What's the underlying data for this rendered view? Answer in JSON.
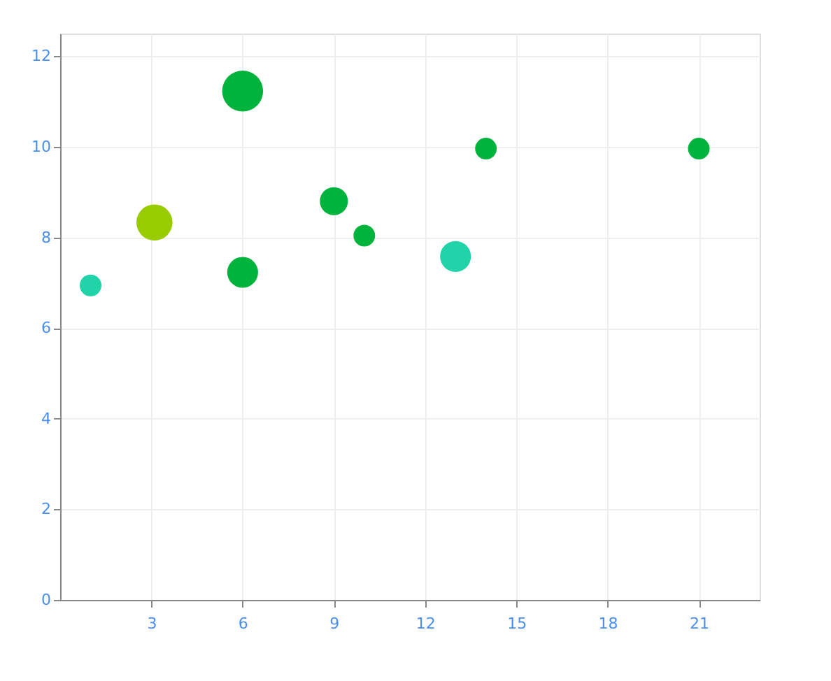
{
  "chart_data": {
    "type": "bubble",
    "x": [
      1,
      3.1,
      6,
      6,
      9,
      10,
      13,
      14,
      21
    ],
    "values": [
      6.94,
      8.33,
      11.23,
      7.23,
      8.8,
      8.04,
      7.58,
      9.96,
      9.96
    ],
    "sizes": [
      0.28,
      0.78,
      1,
      0.57,
      0.47,
      0.28,
      0.57,
      0.28,
      0.28
    ],
    "colors": [
      "#21d3a8",
      "#99cc00",
      "#00b33c",
      "#00b33c",
      "#00b33c",
      "#00b33c",
      "#21d3a8",
      "#00b33c",
      "#00b33c"
    ],
    "xlim": [
      0,
      23
    ],
    "xticks": [
      3,
      6,
      9,
      12,
      15,
      18,
      21
    ],
    "ylim": [
      0,
      12.5
    ],
    "yticks": [
      0,
      2,
      4,
      6,
      8,
      10,
      12
    ],
    "grid": true,
    "legend": false
  }
}
